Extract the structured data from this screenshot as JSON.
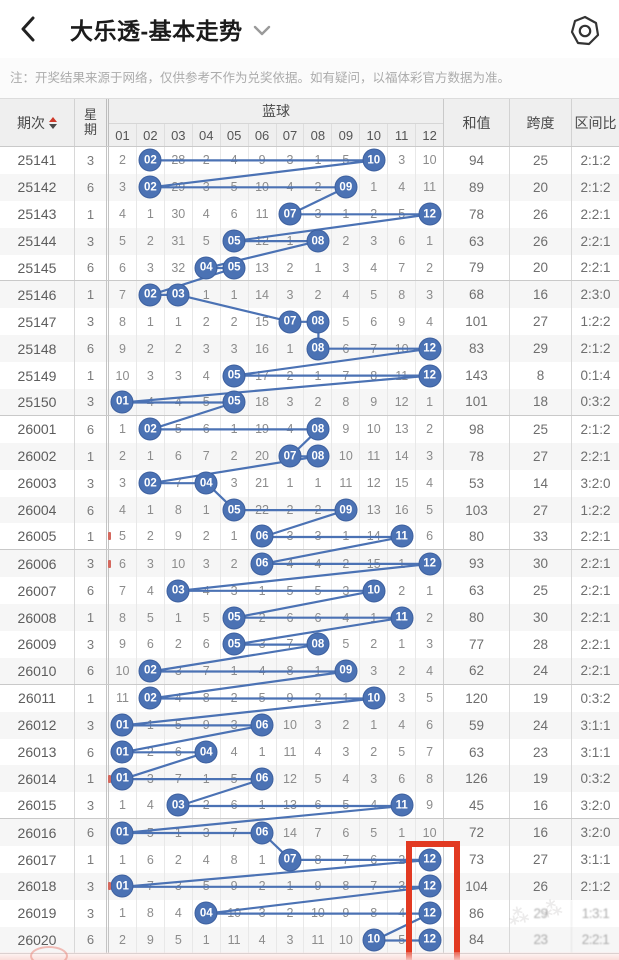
{
  "topbar": {
    "title": "大乐透-基本走势"
  },
  "note": "注：开奖结果来源于网络，仅供参考不作为兑奖依据。如有疑问，以福体彩官方数据为准。",
  "colors": {
    "ball_blue": "#4b72b4",
    "line_blue": "#4b72b4",
    "highlight_red": "#e23a22"
  },
  "table": {
    "col_period": "期次",
    "col_week": "星期",
    "col_zone": "蓝球",
    "ball_headers": [
      "01",
      "02",
      "03",
      "04",
      "05",
      "06",
      "07",
      "08",
      "09",
      "10",
      "11",
      "12"
    ],
    "col_sum": "和值",
    "col_span": "跨度",
    "col_ratio": "区间比",
    "rows": [
      {
        "period": "25141",
        "week": "3",
        "cells": [
          "2",
          "02",
          "28",
          "2",
          "4",
          "9",
          "3",
          "1",
          "5",
          "10",
          "3",
          "10"
        ],
        "drawn": [
          2,
          10
        ],
        "sum": "94",
        "span": "25",
        "ratio": "2:1:2"
      },
      {
        "period": "25142",
        "week": "6",
        "cells": [
          "3",
          "02",
          "29",
          "3",
          "5",
          "10",
          "4",
          "2",
          "09",
          "1",
          "4",
          "11"
        ],
        "drawn": [
          2,
          9
        ],
        "sum": "89",
        "span": "20",
        "ratio": "2:1:2"
      },
      {
        "period": "25143",
        "week": "1",
        "cells": [
          "4",
          "1",
          "30",
          "4",
          "6",
          "11",
          "07",
          "3",
          "1",
          "2",
          "5",
          "12"
        ],
        "drawn": [
          7,
          12
        ],
        "sum": "78",
        "span": "26",
        "ratio": "2:2:1"
      },
      {
        "period": "25144",
        "week": "3",
        "cells": [
          "5",
          "2",
          "31",
          "5",
          "05",
          "12",
          "1",
          "08",
          "2",
          "3",
          "6",
          "1"
        ],
        "drawn": [
          5,
          8
        ],
        "sum": "63",
        "span": "26",
        "ratio": "2:2:1"
      },
      {
        "period": "25145",
        "week": "6",
        "cells": [
          "6",
          "3",
          "32",
          "04",
          "05",
          "13",
          "2",
          "1",
          "3",
          "4",
          "7",
          "2"
        ],
        "drawn": [
          4,
          5
        ],
        "sum": "79",
        "span": "20",
        "ratio": "2:2:1"
      },
      {
        "period": "25146",
        "week": "1",
        "cells": [
          "7",
          "02",
          "03",
          "1",
          "1",
          "14",
          "3",
          "2",
          "4",
          "5",
          "8",
          "3"
        ],
        "drawn": [
          2,
          3
        ],
        "sum": "68",
        "span": "16",
        "ratio": "2:3:0"
      },
      {
        "period": "25147",
        "week": "3",
        "cells": [
          "8",
          "1",
          "1",
          "2",
          "2",
          "15",
          "07",
          "08",
          "5",
          "6",
          "9",
          "4"
        ],
        "drawn": [
          7,
          8
        ],
        "sum": "101",
        "span": "27",
        "ratio": "1:2:2"
      },
      {
        "period": "25148",
        "week": "6",
        "cells": [
          "9",
          "2",
          "2",
          "3",
          "3",
          "16",
          "1",
          "08",
          "6",
          "7",
          "10",
          "12"
        ],
        "drawn": [
          8,
          12
        ],
        "sum": "83",
        "span": "29",
        "ratio": "2:1:2"
      },
      {
        "period": "25149",
        "week": "1",
        "cells": [
          "10",
          "3",
          "3",
          "4",
          "05",
          "17",
          "2",
          "1",
          "7",
          "8",
          "11",
          "12"
        ],
        "drawn": [
          5,
          12
        ],
        "sum": "143",
        "span": "8",
        "ratio": "0:1:4"
      },
      {
        "period": "25150",
        "week": "3",
        "cells": [
          "01",
          "4",
          "4",
          "5",
          "05",
          "18",
          "3",
          "2",
          "8",
          "9",
          "12",
          "1"
        ],
        "drawn": [
          1,
          5
        ],
        "sum": "101",
        "span": "18",
        "ratio": "0:3:2"
      },
      {
        "period": "26001",
        "week": "6",
        "cells": [
          "1",
          "02",
          "5",
          "6",
          "1",
          "19",
          "4",
          "08",
          "9",
          "10",
          "13",
          "2"
        ],
        "drawn": [
          2,
          8
        ],
        "sum": "98",
        "span": "25",
        "ratio": "2:1:2"
      },
      {
        "period": "26002",
        "week": "1",
        "cells": [
          "2",
          "1",
          "6",
          "7",
          "2",
          "20",
          "07",
          "08",
          "10",
          "11",
          "14",
          "3"
        ],
        "drawn": [
          7,
          8
        ],
        "sum": "78",
        "span": "27",
        "ratio": "2:2:1"
      },
      {
        "period": "26003",
        "week": "3",
        "cells": [
          "3",
          "02",
          "7",
          "04",
          "3",
          "21",
          "1",
          "1",
          "11",
          "12",
          "15",
          "4"
        ],
        "drawn": [
          2,
          4
        ],
        "sum": "53",
        "span": "14",
        "ratio": "3:2:0"
      },
      {
        "period": "26004",
        "week": "6",
        "cells": [
          "4",
          "1",
          "8",
          "1",
          "05",
          "22",
          "2",
          "2",
          "09",
          "13",
          "16",
          "5"
        ],
        "drawn": [
          5,
          9
        ],
        "sum": "103",
        "span": "27",
        "ratio": "1:2:2"
      },
      {
        "period": "26005",
        "week": "1",
        "cells": [
          "5",
          "2",
          "9",
          "2",
          "1",
          "06",
          "3",
          "3",
          "1",
          "14",
          "11",
          "6"
        ],
        "drawn": [
          6,
          11
        ],
        "sum": "80",
        "span": "33",
        "ratio": "2:2:1"
      },
      {
        "period": "26006",
        "week": "3",
        "cells": [
          "6",
          "3",
          "10",
          "3",
          "2",
          "06",
          "4",
          "4",
          "2",
          "15",
          "1",
          "12"
        ],
        "drawn": [
          6,
          12
        ],
        "sum": "93",
        "span": "30",
        "ratio": "2:2:1"
      },
      {
        "period": "26007",
        "week": "6",
        "cells": [
          "7",
          "4",
          "03",
          "4",
          "3",
          "1",
          "5",
          "5",
          "3",
          "10",
          "2",
          "1"
        ],
        "drawn": [
          3,
          10
        ],
        "sum": "63",
        "span": "25",
        "ratio": "2:2:1"
      },
      {
        "period": "26008",
        "week": "1",
        "cells": [
          "8",
          "5",
          "1",
          "5",
          "05",
          "2",
          "6",
          "6",
          "4",
          "1",
          "11",
          "2"
        ],
        "drawn": [
          5,
          11
        ],
        "sum": "80",
        "span": "30",
        "ratio": "2:2:1"
      },
      {
        "period": "26009",
        "week": "3",
        "cells": [
          "9",
          "6",
          "2",
          "6",
          "05",
          "3",
          "7",
          "08",
          "5",
          "2",
          "1",
          "3"
        ],
        "drawn": [
          5,
          8
        ],
        "sum": "77",
        "span": "28",
        "ratio": "2:2:1"
      },
      {
        "period": "26010",
        "week": "6",
        "cells": [
          "10",
          "02",
          "3",
          "7",
          "1",
          "4",
          "8",
          "1",
          "09",
          "3",
          "2",
          "4"
        ],
        "drawn": [
          2,
          9
        ],
        "sum": "62",
        "span": "24",
        "ratio": "2:2:1"
      },
      {
        "period": "26011",
        "week": "1",
        "cells": [
          "11",
          "02",
          "4",
          "8",
          "2",
          "5",
          "9",
          "2",
          "1",
          "10",
          "3",
          "5"
        ],
        "drawn": [
          2,
          10
        ],
        "sum": "120",
        "span": "19",
        "ratio": "0:3:2"
      },
      {
        "period": "26012",
        "week": "3",
        "cells": [
          "01",
          "1",
          "5",
          "9",
          "3",
          "06",
          "10",
          "3",
          "2",
          "1",
          "4",
          "6"
        ],
        "drawn": [
          1,
          6
        ],
        "sum": "59",
        "span": "24",
        "ratio": "3:1:1"
      },
      {
        "period": "26013",
        "week": "6",
        "cells": [
          "01",
          "2",
          "6",
          "04",
          "4",
          "1",
          "11",
          "4",
          "3",
          "2",
          "5",
          "7"
        ],
        "drawn": [
          1,
          4
        ],
        "sum": "63",
        "span": "23",
        "ratio": "3:1:1"
      },
      {
        "period": "26014",
        "week": "1",
        "cells": [
          "01",
          "3",
          "7",
          "1",
          "5",
          "06",
          "12",
          "5",
          "4",
          "3",
          "6",
          "8"
        ],
        "drawn": [
          1,
          6
        ],
        "sum": "126",
        "span": "19",
        "ratio": "0:3:2"
      },
      {
        "period": "26015",
        "week": "3",
        "cells": [
          "1",
          "4",
          "03",
          "2",
          "6",
          "1",
          "13",
          "6",
          "5",
          "4",
          "11",
          "9"
        ],
        "drawn": [
          3,
          11
        ],
        "sum": "45",
        "span": "16",
        "ratio": "3:2:0"
      },
      {
        "period": "26016",
        "week": "6",
        "cells": [
          "01",
          "5",
          "1",
          "3",
          "7",
          "06",
          "14",
          "7",
          "6",
          "5",
          "1",
          "10"
        ],
        "drawn": [
          1,
          6
        ],
        "sum": "72",
        "span": "16",
        "ratio": "3:2:0"
      },
      {
        "period": "26017",
        "week": "1",
        "cells": [
          "1",
          "6",
          "2",
          "4",
          "8",
          "1",
          "07",
          "8",
          "7",
          "6",
          "2",
          "12"
        ],
        "drawn": [
          7,
          12
        ],
        "sum": "73",
        "span": "27",
        "ratio": "3:1:1"
      },
      {
        "period": "26018",
        "week": "3",
        "cells": [
          "01",
          "7",
          "3",
          "5",
          "9",
          "2",
          "1",
          "9",
          "8",
          "7",
          "3",
          "12"
        ],
        "drawn": [
          1,
          12
        ],
        "sum": "104",
        "span": "26",
        "ratio": "2:1:2"
      },
      {
        "period": "26019",
        "week": "3",
        "cells": [
          "1",
          "8",
          "4",
          "04",
          "10",
          "3",
          "2",
          "10",
          "9",
          "8",
          "4",
          "12"
        ],
        "drawn": [
          4,
          12
        ],
        "sum": "86",
        "span": "29",
        "ratio": "1:3:1"
      },
      {
        "period": "26020",
        "week": "6",
        "cells": [
          "2",
          "9",
          "5",
          "1",
          "11",
          "4",
          "3",
          "11",
          "10",
          "10",
          "5",
          "12"
        ],
        "drawn": [
          10,
          12
        ],
        "sum": "84",
        "span": "23",
        "ratio": "2:2:1"
      }
    ]
  },
  "annotations": {
    "highlight_rect": {
      "column": "12",
      "first_row": "26017",
      "last_row": "26020"
    },
    "red_tick_row_indices": [
      14,
      15,
      23,
      27
    ],
    "degraded_cells": [
      [
        28,
        "span"
      ],
      [
        28,
        "ratio"
      ],
      [
        29,
        "span"
      ],
      [
        29,
        "ratio"
      ]
    ]
  }
}
